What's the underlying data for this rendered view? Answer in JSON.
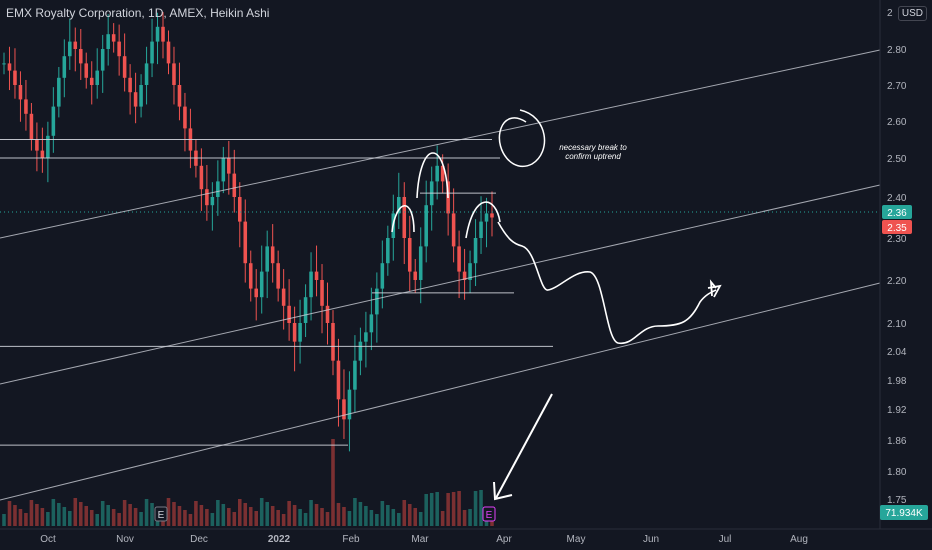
{
  "header": {
    "title": "EMX Royalty Corporation, 1D, AMEX, Heikin Ashi",
    "currency": "USD"
  },
  "annotation": {
    "line1": "necessary break to",
    "line2": "confirm uptrend"
  },
  "colors": {
    "background": "#131722",
    "up": "#26a69a",
    "down": "#ef5350",
    "drawing": "#ffffff"
  },
  "chart_data": {
    "type": "candlestick",
    "title": "EMX Royalty Corporation, 1D, AMEX, Heikin Ashi",
    "y_ticks": [
      2.8,
      2.7,
      2.6,
      2.5,
      2.4,
      2.3,
      2.2,
      2.1,
      2.04,
      1.98,
      1.92,
      1.86,
      1.8,
      1.75
    ],
    "top_tick_label": "2",
    "x_ticks": [
      "Oct",
      "Nov",
      "Dec",
      "2022",
      "Feb",
      "Mar",
      "Apr",
      "May",
      "Jun",
      "Jul",
      "Aug"
    ],
    "price_labels": [
      {
        "value": "2.36",
        "color": "#26a69a"
      },
      {
        "value": "2.35",
        "color": "#ef5350"
      }
    ],
    "volume_label": "71.934K",
    "event_markers": [
      "E",
      "E"
    ],
    "horizontal_levels": [
      2.55,
      2.5,
      2.41,
      2.17,
      2.05,
      1.85
    ],
    "series_shape": [
      2.76,
      2.74,
      2.7,
      2.66,
      2.62,
      2.55,
      2.52,
      2.5,
      2.56,
      2.64,
      2.72,
      2.78,
      2.82,
      2.8,
      2.76,
      2.72,
      2.7,
      2.74,
      2.8,
      2.84,
      2.82,
      2.78,
      2.72,
      2.68,
      2.64,
      2.7,
      2.76,
      2.82,
      2.86,
      2.82,
      2.76,
      2.7,
      2.64,
      2.58,
      2.52,
      2.48,
      2.42,
      2.38,
      2.4,
      2.44,
      2.5,
      2.46,
      2.4,
      2.34,
      2.24,
      2.18,
      2.16,
      2.22,
      2.28,
      2.24,
      2.18,
      2.14,
      2.1,
      2.06,
      2.1,
      2.16,
      2.22,
      2.2,
      2.14,
      2.1,
      2.02,
      1.94,
      1.9,
      1.96,
      2.02,
      2.06,
      2.08,
      2.12,
      2.18,
      2.24,
      2.3,
      2.36,
      2.4,
      2.3,
      2.22,
      2.2,
      2.28,
      2.38,
      2.44,
      2.48,
      2.44,
      2.36,
      2.28,
      2.22,
      2.2,
      2.24,
      2.3,
      2.34,
      2.36,
      2.35
    ]
  }
}
